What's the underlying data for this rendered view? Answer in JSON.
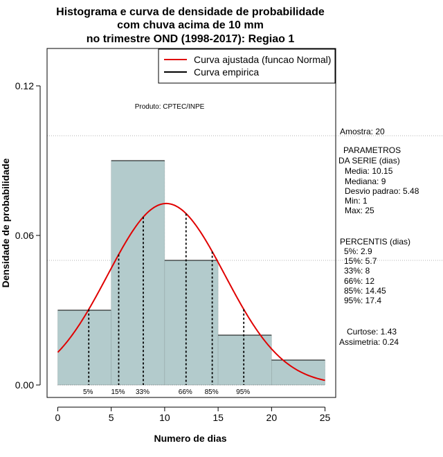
{
  "chart_data": {
    "type": "bar",
    "title_lines": [
      "Histograma e curva de densidade de probabilidade",
      "com chuva acima de 10 mm",
      "no trimestre OND (1998-2017): Regiao 1"
    ],
    "xlabel": "Numero de dias",
    "ylabel": "Densidade de probabilidade",
    "xlim": [
      -1,
      26
    ],
    "ylim": [
      -0.005,
      0.135
    ],
    "x_ticks": [
      0,
      5,
      10,
      15,
      20,
      25
    ],
    "y_ticks": [
      0.0,
      0.06,
      0.12
    ],
    "y_tick_labels": [
      "0.00",
      "0.06",
      "0.12"
    ],
    "grid_lines_y": [
      0.1,
      0.05
    ],
    "bars": [
      {
        "start": 0,
        "end": 5,
        "density": 0.03
      },
      {
        "start": 5,
        "end": 10,
        "density": 0.09
      },
      {
        "start": 10,
        "end": 15,
        "density": 0.05
      },
      {
        "start": 15,
        "end": 20,
        "density": 0.02
      },
      {
        "start": 20,
        "end": 25,
        "density": 0.01
      }
    ],
    "bar_color": "#b3cbcc",
    "normal_curve": {
      "mean": 10.15,
      "sd": 5.48,
      "color": "#e00000"
    },
    "percentile_lines": [
      {
        "label": "5%",
        "value": 2.9
      },
      {
        "label": "15%",
        "value": 5.7
      },
      {
        "label": "33%",
        "value": 8
      },
      {
        "label": "66%",
        "value": 12
      },
      {
        "label": "85%",
        "value": 14.45
      },
      {
        "label": "95%",
        "value": 17.4
      }
    ],
    "legend": {
      "position": "top-right",
      "entries": [
        {
          "label": "Curva ajustada (funcao Normal)",
          "color": "#e00000"
        },
        {
          "label": "Curva empirica",
          "color": "#000000"
        }
      ]
    },
    "annotation_produto": "Produto: CPTEC/INPE"
  },
  "side_panel": {
    "amostra": "Amostra: 20",
    "param_title_1": "PARAMETROS",
    "param_title_2": "DA SERIE (dias)",
    "params": [
      "Media: 10.15",
      "Mediana: 9",
      "Desvio padrao: 5.48",
      "Min: 1",
      "Max: 25"
    ],
    "percentis_title": "PERCENTIS (dias)",
    "percentis": [
      "5%: 2.9",
      "15%: 5.7",
      "33%: 8",
      "66%: 12",
      "85%: 14.45",
      "95%: 17.4"
    ],
    "curtose": "Curtose: 1.43",
    "assimetria": "Assimetria: 0.24"
  }
}
